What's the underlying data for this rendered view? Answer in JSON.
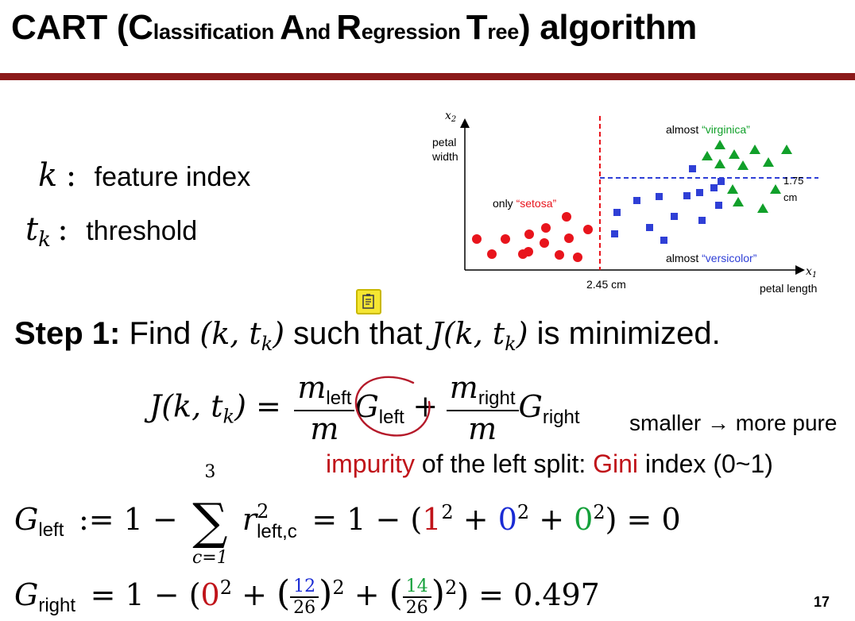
{
  "title": {
    "part1": "CART (",
    "c_cap": "C",
    "c_rest": "lassification ",
    "a_cap": "A",
    "a_rest": "nd ",
    "r_cap": "R",
    "r_rest": "egression ",
    "t_cap": "T",
    "t_rest": "ree",
    "part2": ") algorithm"
  },
  "definitions": [
    {
      "symbol": "k",
      "colon": ":",
      "text": "feature index"
    },
    {
      "symbol": "t",
      "symbol_sub": "k",
      "colon": ":",
      "text": "threshold"
    }
  ],
  "figure": {
    "y_axis_symbol": "x",
    "y_axis_symbol_sub": "2",
    "y_axis_label_line1": "petal",
    "y_axis_label_line2": "width",
    "x_axis_symbol": "x",
    "x_axis_symbol_sub": "1",
    "x_axis_label": "petal length",
    "split1_label": "2.45 cm",
    "split2_label_line1": "1.75",
    "split2_label_line2": "cm",
    "region_setosa_prefix": "only ",
    "region_setosa_name": "“setosa”",
    "region_virginica_prefix": "almost ",
    "region_virginica_name": "“virginica”",
    "region_versicolor_prefix": "almost ",
    "region_versicolor_name": "“versicolor”",
    "colors": {
      "setosa": "#e8141c",
      "versicolor": "#2f3fd6",
      "virginica": "#11a02a",
      "split_vertical": "#e8141c",
      "split_horizontal": "#2f3fd6"
    }
  },
  "step": {
    "label": "Step 1:",
    "text1": " Find ",
    "text2": " such that ",
    "text3": " is minimized."
  },
  "formula_J": {
    "lhs": "J(k, t",
    "lhs_sub": "k",
    "lhs_close": ") =",
    "m_left": "m",
    "m_left_sub": "left",
    "m_den": "m",
    "G_left": "G",
    "G_left_sub": "left",
    "plus": "+",
    "m_right": "m",
    "m_right_sub": "right",
    "m_den2": "m",
    "G_right": "G",
    "G_right_sub": "right"
  },
  "note_smaller": "smaller → more pure",
  "note_impurity": {
    "word_impurity": "impurity",
    "mid": " of the left split: ",
    "word_gini": "Gini",
    "end": " index (0~1)"
  },
  "formula_G_left": {
    "G": "G",
    "G_sub": "left",
    "assign": ":= 1 −",
    "sum_top": "3",
    "sum_bottom": "c=1",
    "r": "r",
    "r_sup": "2",
    "r_sub": "left,c",
    "expr1": "= 1 − (",
    "v1": "1",
    "plus1": " + ",
    "v2": "0",
    "plus2": " + ",
    "v3": "0",
    "expr2": ") = 0",
    "exp": "2"
  },
  "formula_G_right": {
    "G": "G",
    "G_sub": "right",
    "expr1": "= 1 − (",
    "v1": "0",
    "plus1": " + ",
    "f1_num": "12",
    "f1_den": "26",
    "plus2": " + ",
    "f2_num": "14",
    "f2_den": "26",
    "expr2": ") = 0.497",
    "exp": "2"
  },
  "page_number": "17",
  "icons": {
    "note": "sticky-note-icon"
  }
}
